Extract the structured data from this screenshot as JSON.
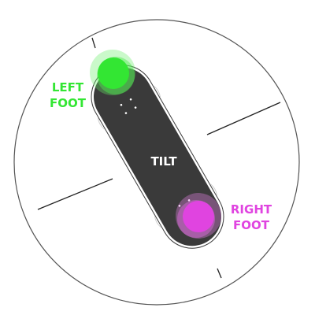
{
  "board": {
    "label": "TILT"
  },
  "left_foot": {
    "label_line1": "LEFT",
    "label_line2": "FOOT",
    "color": "#33e633"
  },
  "right_foot": {
    "label_line1": "RIGHT",
    "label_line2": "FOOT",
    "color": "#e044e0"
  },
  "colors": {
    "deck": "#3a3a3a",
    "ring": "#555555",
    "guides": "#222222",
    "label_white": "#ffffff"
  },
  "icons": {
    "board": "skateboard-deck-icon",
    "left_foot": "left-foot-target-icon",
    "right_foot": "right-foot-target-icon"
  }
}
